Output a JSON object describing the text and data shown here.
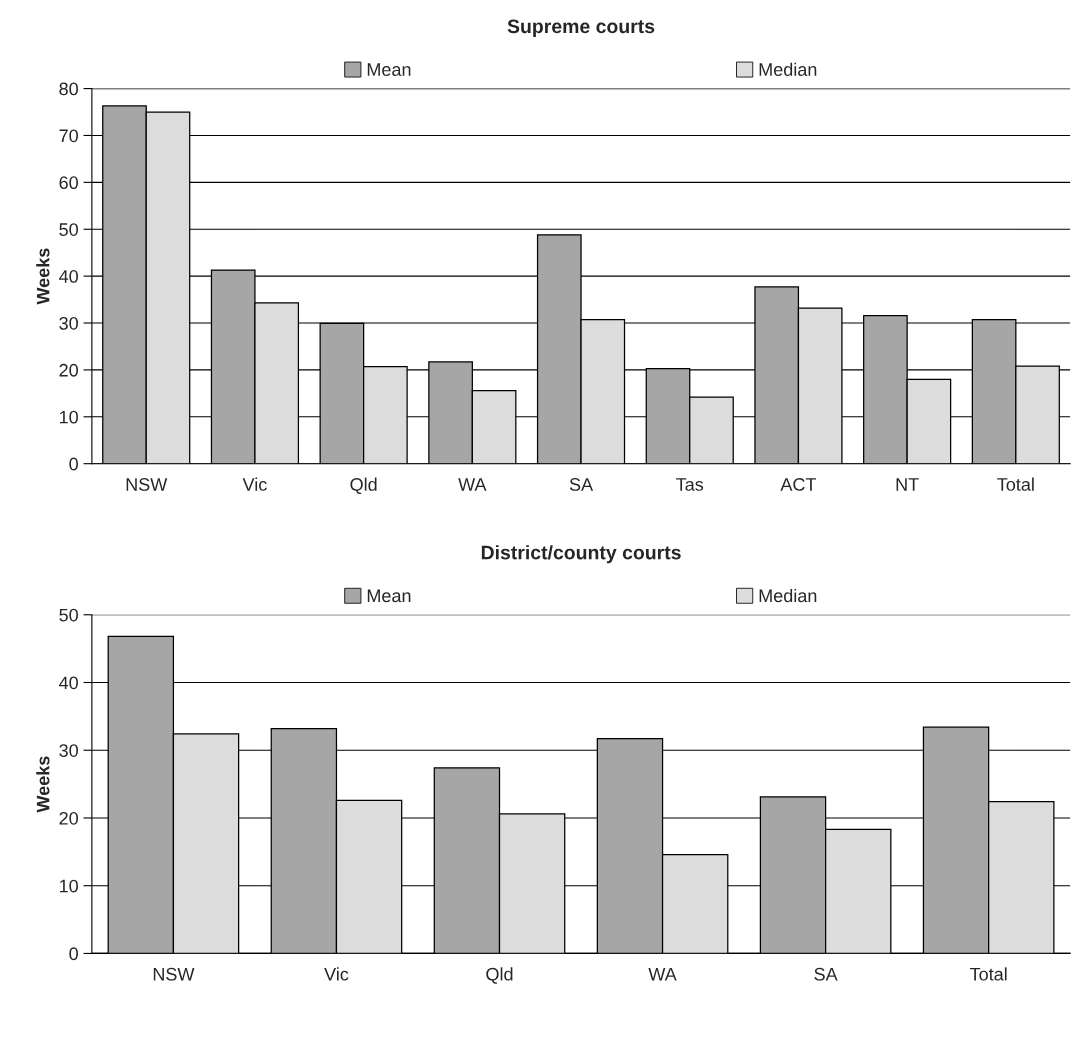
{
  "chart_data": [
    {
      "type": "bar",
      "title": "Supreme courts",
      "ylabel": "Weeks",
      "categories": [
        "NSW",
        "Vic",
        "Qld",
        "WA",
        "SA",
        "Tas",
        "ACT",
        "NT",
        "Total"
      ],
      "series": [
        {
          "name": "Mean",
          "color": "#a6a6a6",
          "values": [
            76.3,
            41.3,
            29.9,
            21.7,
            48.8,
            20.3,
            37.7,
            31.6,
            30.7
          ]
        },
        {
          "name": "Median",
          "color": "#dcdcdc",
          "values": [
            75.0,
            34.3,
            20.7,
            15.6,
            30.7,
            14.2,
            33.2,
            18.0,
            20.8
          ]
        }
      ],
      "ylim": [
        0,
        80
      ],
      "yticks": [
        0,
        10,
        20,
        30,
        40,
        50,
        60,
        70,
        80
      ],
      "grid": "y",
      "legend": "top"
    },
    {
      "type": "bar",
      "title": "District/county courts",
      "ylabel": "Weeks",
      "categories": [
        "NSW",
        "Vic",
        "Qld",
        "WA",
        "SA",
        "Total"
      ],
      "series": [
        {
          "name": "Mean",
          "color": "#a6a6a6",
          "values": [
            46.8,
            33.2,
            27.4,
            31.7,
            23.1,
            33.4
          ]
        },
        {
          "name": "Median",
          "color": "#dcdcdc",
          "values": [
            32.4,
            22.6,
            20.6,
            14.6,
            18.3,
            22.4
          ]
        }
      ],
      "ylim": [
        0,
        50
      ],
      "yticks": [
        0,
        10,
        20,
        30,
        40,
        50
      ],
      "grid": "y",
      "legend": "top"
    }
  ]
}
